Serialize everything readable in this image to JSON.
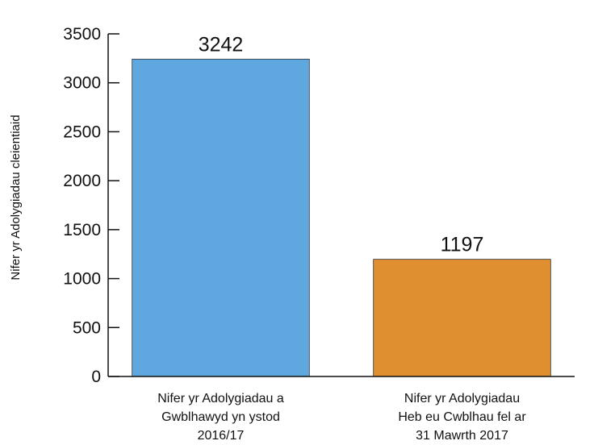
{
  "chart_data": {
    "type": "bar",
    "categories": [
      [
        "Nifer yr Adolygiadau a",
        "Gwblhawyd yn ystod",
        "2016/17"
      ],
      [
        "Nifer yr Adolygiadau",
        "Heb eu Cwblhau fel ar",
        "31 Mawrth 2017"
      ]
    ],
    "values": [
      3242,
      1197
    ],
    "data_labels": [
      "3242",
      "1197"
    ],
    "colors": [
      "#5fa7df",
      "#df8f2f"
    ],
    "title": "",
    "xlabel": "",
    "ylabel": "Nifer yr Adolygiadau cleientiaid",
    "ylim": [
      0,
      3500
    ],
    "yticks": [
      0,
      500,
      1000,
      1500,
      2000,
      2500,
      3000,
      3500
    ],
    "grid": false,
    "legend": "none"
  }
}
